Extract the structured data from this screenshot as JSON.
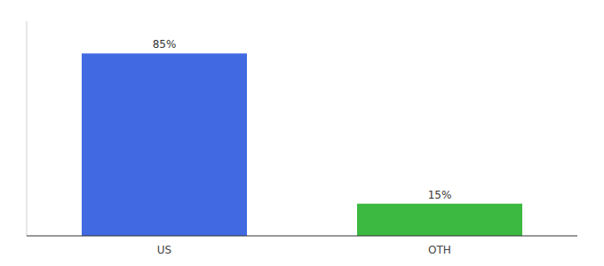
{
  "chart_data": {
    "type": "bar",
    "categories": [
      "US",
      "OTH"
    ],
    "values": [
      85,
      15
    ],
    "value_labels": [
      "85%",
      "15%"
    ],
    "colors": [
      "#4169E1",
      "#3CB940"
    ],
    "ylim": [
      0,
      100
    ],
    "data_labels": true,
    "tick_labels": "x",
    "grid": false
  }
}
